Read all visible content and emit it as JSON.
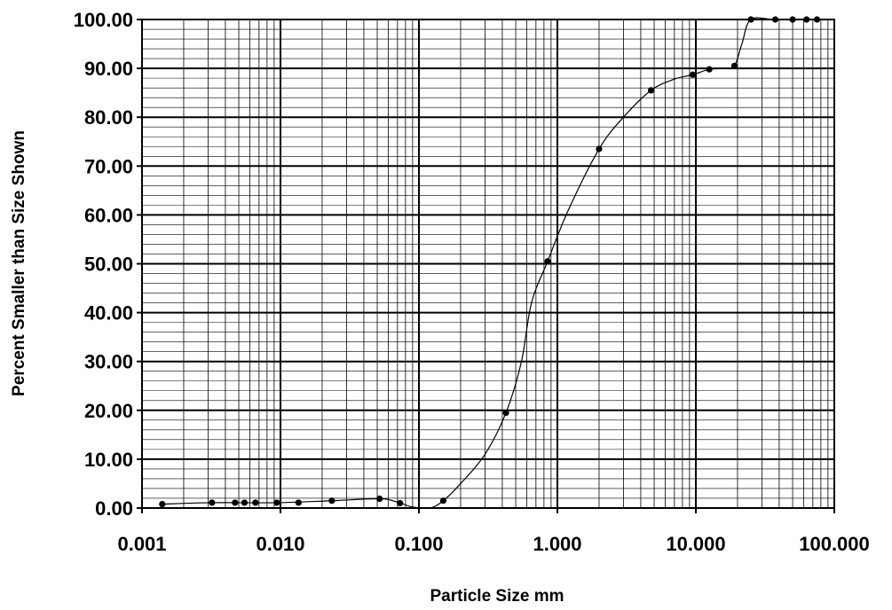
{
  "chart_data": {
    "type": "scatter",
    "title": "",
    "xlabel": "Particle Size  mm",
    "ylabel": "Percent Smaller than Size Shown",
    "xscale": "log",
    "xlim": [
      0.001,
      100
    ],
    "ylim": [
      0,
      100
    ],
    "grid": true,
    "legend": "none",
    "colors": {
      "line": "#000000",
      "marker": "#000000",
      "grid": "#000000",
      "background": "#ffffff"
    },
    "x_tick_labels": [
      "0.001",
      "0.010",
      "0.100",
      "1.000",
      "10.000",
      "100.000"
    ],
    "x_tick_values": [
      0.001,
      0.01,
      0.1,
      1,
      10,
      100
    ],
    "y_tick_labels": [
      "0.00",
      "10.00",
      "20.00",
      "30.00",
      "40.00",
      "50.00",
      "60.00",
      "70.00",
      "80.00",
      "90.00",
      "100.00"
    ],
    "y_tick_values": [
      0,
      10,
      20,
      30,
      40,
      50,
      60,
      70,
      80,
      90,
      100
    ],
    "series": [
      {
        "points": [
          {
            "x": 0.0014,
            "y": 0.8
          },
          {
            "x": 0.0032,
            "y": 1.1
          },
          {
            "x": 0.0047,
            "y": 1.1
          },
          {
            "x": 0.0055,
            "y": 1.1
          },
          {
            "x": 0.0066,
            "y": 1.1
          },
          {
            "x": 0.0094,
            "y": 1.1
          },
          {
            "x": 0.0135,
            "y": 1.1
          },
          {
            "x": 0.0235,
            "y": 1.5
          },
          {
            "x": 0.052,
            "y": 1.9
          },
          {
            "x": 0.073,
            "y": 1.0
          },
          {
            "x": 0.15,
            "y": 1.5
          },
          {
            "x": 0.425,
            "y": 19.5
          },
          {
            "x": 0.85,
            "y": 50.5
          },
          {
            "x": 2.0,
            "y": 73.5
          },
          {
            "x": 4.75,
            "y": 85.5
          },
          {
            "x": 9.5,
            "y": 88.7
          },
          {
            "x": 12.5,
            "y": 89.8
          },
          {
            "x": 19.0,
            "y": 90.5
          },
          {
            "x": 25.0,
            "y": 100
          },
          {
            "x": 37.5,
            "y": 100
          },
          {
            "x": 50.0,
            "y": 100
          },
          {
            "x": 63.0,
            "y": 100
          },
          {
            "x": 75.0,
            "y": 100
          }
        ],
        "curve": [
          [
            0.0014,
            0.8
          ],
          [
            0.0032,
            1.1
          ],
          [
            0.0094,
            1.1
          ],
          [
            0.0235,
            1.5
          ],
          [
            0.052,
            1.9
          ],
          [
            0.07,
            1.2
          ],
          [
            0.09,
            0.2
          ],
          [
            0.12,
            0
          ],
          [
            0.15,
            1.5
          ],
          [
            0.2,
            5
          ],
          [
            0.3,
            11
          ],
          [
            0.425,
            19.5
          ],
          [
            0.55,
            30
          ],
          [
            0.65,
            42
          ],
          [
            0.85,
            50.5
          ],
          [
            1.2,
            61
          ],
          [
            2.0,
            73.5
          ],
          [
            3.0,
            80
          ],
          [
            4.75,
            85.5
          ],
          [
            7.0,
            87.8
          ],
          [
            9.5,
            88.7
          ],
          [
            12.5,
            89.8
          ],
          [
            16.0,
            90.0
          ],
          [
            19.0,
            90.5
          ],
          [
            21.5,
            95
          ],
          [
            25.0,
            100
          ],
          [
            37.5,
            100
          ],
          [
            75.0,
            100
          ]
        ]
      }
    ]
  }
}
